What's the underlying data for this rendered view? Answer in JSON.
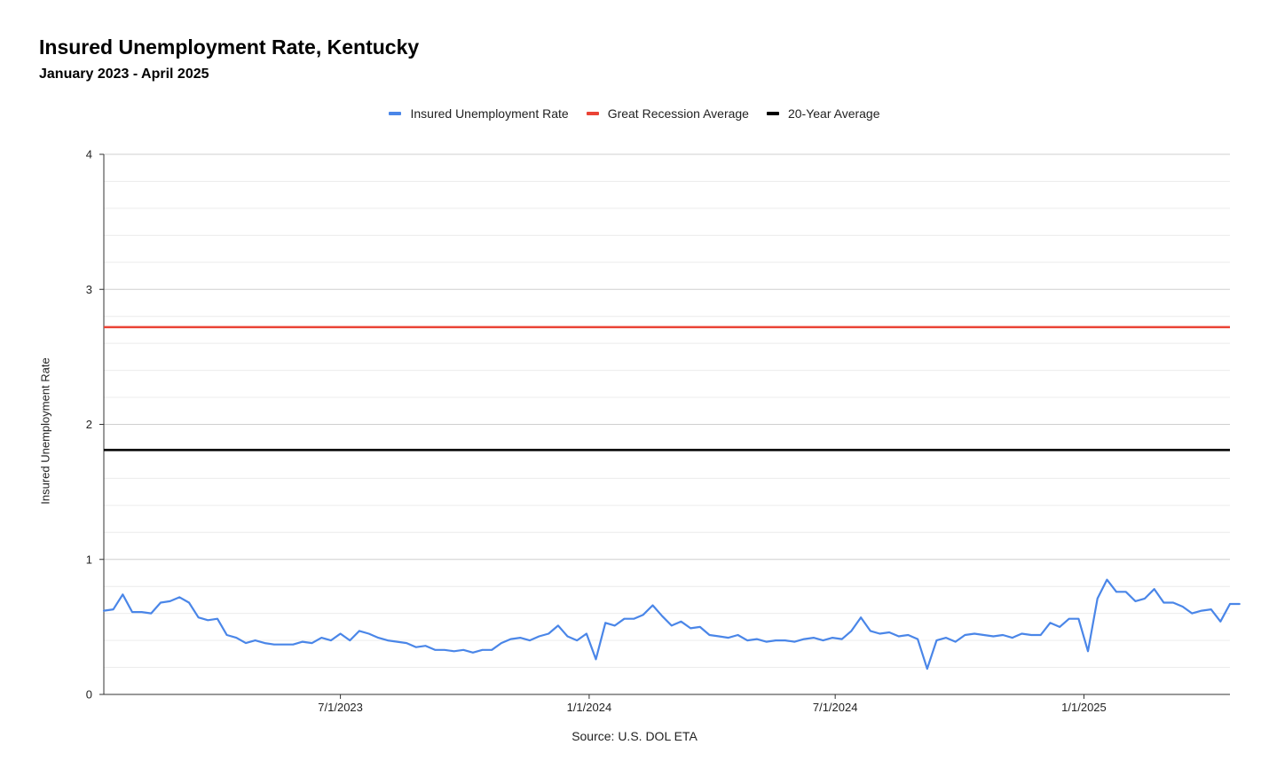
{
  "chart_data": {
    "type": "line",
    "title": "Insured Unemployment Rate, Kentucky",
    "subtitle": "January 2023 - April 2025",
    "ylabel": "Insured Unemployment Rate",
    "xlabel": "",
    "source": "Source: U.S. DOL ETA",
    "ylim": [
      0,
      4
    ],
    "y_ticks": [
      0,
      1,
      2,
      3,
      4
    ],
    "x_start": "2023-01-07",
    "x_end": "2025-04-19",
    "x_ticks": [
      {
        "date": "2023-07-01",
        "label": "7/1/2023"
      },
      {
        "date": "2024-01-01",
        "label": "1/1/2024"
      },
      {
        "date": "2024-07-01",
        "label": "7/1/2024"
      },
      {
        "date": "2025-01-01",
        "label": "1/1/2025"
      }
    ],
    "grid": true,
    "legend_position": "top",
    "series": [
      {
        "name": "Insured Unemployment Rate",
        "color": "#4a86e8",
        "values": [
          0.62,
          0.63,
          0.74,
          0.61,
          0.61,
          0.6,
          0.68,
          0.69,
          0.72,
          0.68,
          0.57,
          0.55,
          0.56,
          0.44,
          0.42,
          0.38,
          0.4,
          0.38,
          0.37,
          0.37,
          0.37,
          0.39,
          0.38,
          0.42,
          0.4,
          0.45,
          0.4,
          0.47,
          0.45,
          0.42,
          0.4,
          0.39,
          0.38,
          0.35,
          0.36,
          0.33,
          0.33,
          0.32,
          0.33,
          0.31,
          0.33,
          0.33,
          0.38,
          0.41,
          0.42,
          0.4,
          0.43,
          0.45,
          0.51,
          0.43,
          0.4,
          0.45,
          0.26,
          0.53,
          0.51,
          0.56,
          0.56,
          0.59,
          0.66,
          0.58,
          0.51,
          0.54,
          0.49,
          0.5,
          0.44,
          0.43,
          0.42,
          0.44,
          0.4,
          0.41,
          0.39,
          0.4,
          0.4,
          0.39,
          0.41,
          0.42,
          0.4,
          0.42,
          0.41,
          0.47,
          0.57,
          0.47,
          0.45,
          0.46,
          0.43,
          0.44,
          0.41,
          0.19,
          0.4,
          0.42,
          0.39,
          0.44,
          0.45,
          0.44,
          0.43,
          0.44,
          0.42,
          0.45,
          0.44,
          0.44,
          0.53,
          0.5,
          0.56,
          0.56,
          0.32,
          0.71,
          0.85,
          0.76,
          0.76,
          0.69,
          0.71,
          0.78,
          0.68,
          0.68,
          0.65,
          0.6,
          0.62,
          0.63,
          0.54,
          0.67,
          0.67
        ]
      },
      {
        "name": "Great Recession Average",
        "color": "#ea4335",
        "constant": 2.72
      },
      {
        "name": "20-Year Average",
        "color": "#000000",
        "constant": 1.81
      }
    ]
  }
}
